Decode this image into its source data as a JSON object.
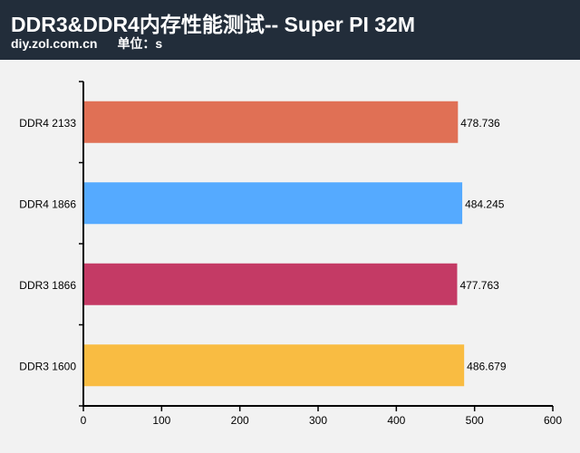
{
  "header": {
    "title": "DDR3&DDR4内存性能测试-- Super PI 32M",
    "site": "diy.zol.com.cn",
    "unit": "单位：s"
  },
  "chart_data": {
    "type": "bar",
    "orientation": "horizontal",
    "categories": [
      "DDR4 2133",
      "DDR4 1866",
      "DDR3 1866",
      "DDR3 1600"
    ],
    "values": [
      478.736,
      484.245,
      477.763,
      486.679
    ],
    "value_labels": [
      "478.736",
      "484.245",
      "477.763",
      "486.679"
    ],
    "colors": [
      "#e07055",
      "#55aaff",
      "#c43a65",
      "#f9bc42"
    ],
    "xlim": [
      0,
      600
    ],
    "xticks": [
      0,
      100,
      200,
      300,
      400,
      500,
      600
    ],
    "grid": false,
    "legend": "none"
  }
}
